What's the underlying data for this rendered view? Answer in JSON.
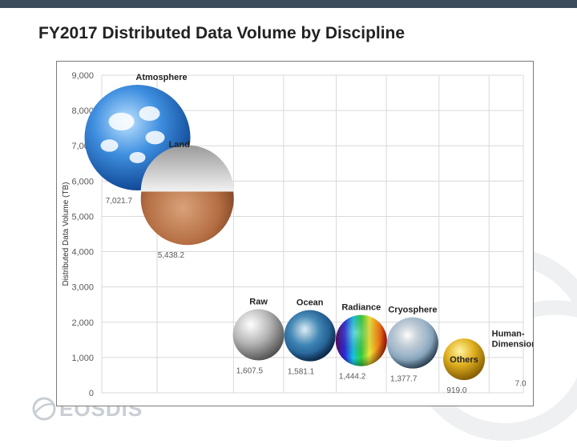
{
  "slide": {
    "title": "FY2017 Distributed Data Volume by Discipline",
    "logo_text": "EOSDIS",
    "accent_color": "#3b4b5c"
  },
  "chart_data": {
    "type": "scatter",
    "ylabel": "Distributed Data Volume (TB)",
    "xlabel": "",
    "ylim": [
      0,
      9000
    ],
    "yticks": [
      "0",
      "1,000",
      "2,000",
      "3,000",
      "4,000",
      "5,000",
      "6,000",
      "7,000",
      "8,000",
      "9,000"
    ],
    "grid": true,
    "points": [
      {
        "name": "Atmosphere",
        "value": 7021.7,
        "value_label": "7,021.7",
        "style": "sky"
      },
      {
        "name": "Land",
        "value": 5438.2,
        "value_label": "5,438.2",
        "style": "desert"
      },
      {
        "name": "Raw",
        "value": 1607.5,
        "value_label": "1,607.5",
        "style": "silver"
      },
      {
        "name": "Ocean",
        "value": 1581.1,
        "value_label": "1,581.1",
        "style": "wave"
      },
      {
        "name": "Radiance",
        "value": 1444.2,
        "value_label": "1,444.2",
        "style": "rainbow"
      },
      {
        "name": "Cryosphere",
        "value": 1377.7,
        "value_label": "1,377.7",
        "style": "ice"
      },
      {
        "name": "Others",
        "value": 919.0,
        "value_label": "919.0",
        "style": "gold"
      },
      {
        "name": "Human-\nDimension",
        "value": 7.0,
        "value_label": "7.0",
        "style": "none"
      }
    ]
  }
}
